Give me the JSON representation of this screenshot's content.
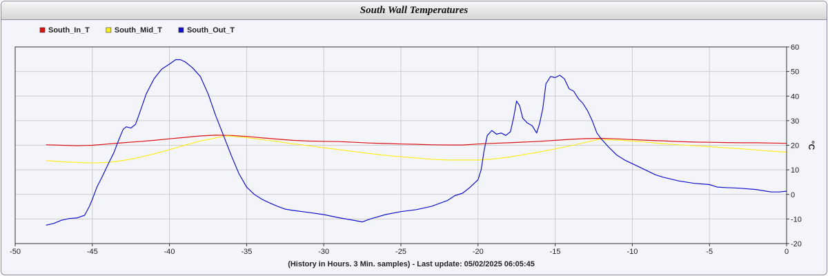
{
  "chart_data": {
    "type": "line",
    "title": "South Wall Temperatures",
    "footer": "(History in Hours. 3 Min. samples) - Last update: 05/02/2025 06:05:45",
    "ylabel": "°C",
    "xlim": [
      -50,
      0
    ],
    "ylim": [
      -20,
      60
    ],
    "xticks": [
      -50,
      -45,
      -40,
      -35,
      -30,
      -25,
      -20,
      -15,
      -10,
      -5,
      0
    ],
    "yticks": [
      -20,
      -10,
      0,
      10,
      20,
      30,
      40,
      50,
      60
    ],
    "grid": true,
    "legend_position": "top-left",
    "series": [
      {
        "name": "South_In_T",
        "color": "#dd1111",
        "points": [
          [
            -48,
            20.2
          ],
          [
            -47,
            20.0
          ],
          [
            -46,
            19.8
          ],
          [
            -45,
            20.0
          ],
          [
            -44,
            20.5
          ],
          [
            -43,
            21.0
          ],
          [
            -42,
            21.5
          ],
          [
            -41,
            22.0
          ],
          [
            -40,
            22.6
          ],
          [
            -39,
            23.2
          ],
          [
            -38,
            23.8
          ],
          [
            -37,
            24.1
          ],
          [
            -36,
            24.0
          ],
          [
            -35,
            23.6
          ],
          [
            -34,
            23.0
          ],
          [
            -33,
            22.5
          ],
          [
            -32,
            22.0
          ],
          [
            -31,
            21.7
          ],
          [
            -30,
            21.6
          ],
          [
            -29,
            21.5
          ],
          [
            -28,
            21.2
          ],
          [
            -27,
            20.9
          ],
          [
            -26,
            20.7
          ],
          [
            -25,
            20.5
          ],
          [
            -24,
            20.4
          ],
          [
            -23,
            20.2
          ],
          [
            -22,
            20.1
          ],
          [
            -21,
            20.1
          ],
          [
            -20,
            20.5
          ],
          [
            -19,
            20.8
          ],
          [
            -18,
            21.0
          ],
          [
            -17,
            21.3
          ],
          [
            -16,
            21.6
          ],
          [
            -15,
            22.0
          ],
          [
            -14,
            22.4
          ],
          [
            -13,
            22.7
          ],
          [
            -12,
            22.8
          ],
          [
            -11,
            22.6
          ],
          [
            -10,
            22.3
          ],
          [
            -9,
            22.0
          ],
          [
            -8,
            21.8
          ],
          [
            -7,
            21.5
          ],
          [
            -6,
            21.3
          ],
          [
            -5,
            21.2
          ],
          [
            -4,
            21.1
          ],
          [
            -3,
            21.0
          ],
          [
            -2,
            21.0
          ],
          [
            -1,
            20.9
          ],
          [
            0,
            20.8
          ]
        ]
      },
      {
        "name": "South_Mid_T",
        "color": "#ffee22",
        "points": [
          [
            -48,
            13.8
          ],
          [
            -47,
            13.3
          ],
          [
            -46,
            13.0
          ],
          [
            -45,
            12.8
          ],
          [
            -44,
            13.0
          ],
          [
            -43,
            13.8
          ],
          [
            -42,
            15.0
          ],
          [
            -41,
            16.5
          ],
          [
            -40,
            18.2
          ],
          [
            -39,
            20.0
          ],
          [
            -38,
            21.7
          ],
          [
            -37,
            23.0
          ],
          [
            -36.3,
            23.8
          ],
          [
            -36,
            23.7
          ],
          [
            -35,
            23.1
          ],
          [
            -34,
            22.3
          ],
          [
            -33,
            21.5
          ],
          [
            -32,
            20.6
          ],
          [
            -31,
            19.8
          ],
          [
            -30,
            19.0
          ],
          [
            -29,
            18.2
          ],
          [
            -28,
            17.4
          ],
          [
            -27,
            16.6
          ],
          [
            -26,
            15.9
          ],
          [
            -25,
            15.3
          ],
          [
            -24,
            14.8
          ],
          [
            -23,
            14.3
          ],
          [
            -22,
            14.0
          ],
          [
            -21,
            14.0
          ],
          [
            -20,
            14.0
          ],
          [
            -19,
            14.4
          ],
          [
            -18,
            15.2
          ],
          [
            -17,
            16.2
          ],
          [
            -16,
            17.3
          ],
          [
            -15,
            18.5
          ],
          [
            -14,
            19.8
          ],
          [
            -13,
            21.2
          ],
          [
            -12.2,
            22.4
          ],
          [
            -12,
            22.3
          ],
          [
            -11,
            22.1
          ],
          [
            -10,
            21.7
          ],
          [
            -9,
            21.2
          ],
          [
            -8,
            20.6
          ],
          [
            -7,
            20.2
          ],
          [
            -6,
            19.8
          ],
          [
            -5,
            19.4
          ],
          [
            -4,
            19.0
          ],
          [
            -3,
            18.6
          ],
          [
            -2,
            18.1
          ],
          [
            -1,
            17.6
          ],
          [
            0,
            17.2
          ]
        ]
      },
      {
        "name": "South_Out_T",
        "color": "#1111cc",
        "points": [
          [
            -48,
            -12.5
          ],
          [
            -47.5,
            -11.8
          ],
          [
            -47,
            -10.5
          ],
          [
            -46.5,
            -9.8
          ],
          [
            -46,
            -9.6
          ],
          [
            -45.5,
            -8.5
          ],
          [
            -45.2,
            -5.0
          ],
          [
            -45,
            -2.0
          ],
          [
            -44.7,
            3.0
          ],
          [
            -44.3,
            8.0
          ],
          [
            -44,
            12.0
          ],
          [
            -43.6,
            17.0
          ],
          [
            -43.3,
            22.0
          ],
          [
            -43,
            26.5
          ],
          [
            -42.8,
            27.5
          ],
          [
            -42.5,
            27.0
          ],
          [
            -42.2,
            28.5
          ],
          [
            -42,
            32.0
          ],
          [
            -41.5,
            41.0
          ],
          [
            -41,
            47.0
          ],
          [
            -40.5,
            51.0
          ],
          [
            -40,
            53.0
          ],
          [
            -39.6,
            54.8
          ],
          [
            -39.3,
            54.8
          ],
          [
            -39,
            54.0
          ],
          [
            -38.5,
            51.5
          ],
          [
            -38,
            48.0
          ],
          [
            -37.5,
            41.0
          ],
          [
            -37,
            32.0
          ],
          [
            -36.5,
            24.0
          ],
          [
            -36,
            16.0
          ],
          [
            -35.5,
            8.5
          ],
          [
            -35,
            3.0
          ],
          [
            -34.5,
            0.0
          ],
          [
            -34,
            -2.0
          ],
          [
            -33.5,
            -3.5
          ],
          [
            -33,
            -4.8
          ],
          [
            -32.5,
            -6.0
          ],
          [
            -32,
            -6.5
          ],
          [
            -31,
            -7.3
          ],
          [
            -30,
            -8.2
          ],
          [
            -29,
            -9.5
          ],
          [
            -28,
            -10.6
          ],
          [
            -27.5,
            -11.2
          ],
          [
            -27,
            -10.0
          ],
          [
            -26,
            -8.2
          ],
          [
            -25,
            -7.0
          ],
          [
            -24,
            -6.2
          ],
          [
            -23,
            -4.8
          ],
          [
            -22,
            -2.5
          ],
          [
            -21.5,
            -0.5
          ],
          [
            -21,
            0.5
          ],
          [
            -20.5,
            3.0
          ],
          [
            -20,
            6.0
          ],
          [
            -19.8,
            10.0
          ],
          [
            -19.6,
            18.0
          ],
          [
            -19.4,
            24.0
          ],
          [
            -19.1,
            26.0
          ],
          [
            -18.8,
            24.5
          ],
          [
            -18.5,
            25.0
          ],
          [
            -18.2,
            24.0
          ],
          [
            -17.9,
            25.5
          ],
          [
            -17.7,
            31.0
          ],
          [
            -17.5,
            38.0
          ],
          [
            -17.3,
            36.0
          ],
          [
            -17.1,
            31.0
          ],
          [
            -16.8,
            29.0
          ],
          [
            -16.5,
            28.0
          ],
          [
            -16.2,
            25.0
          ],
          [
            -16.0,
            29.0
          ],
          [
            -15.8,
            35.0
          ],
          [
            -15.6,
            45.0
          ],
          [
            -15.3,
            48.0
          ],
          [
            -15.0,
            47.5
          ],
          [
            -14.7,
            48.5
          ],
          [
            -14.4,
            47.0
          ],
          [
            -14.1,
            43.0
          ],
          [
            -13.8,
            42.0
          ],
          [
            -13.5,
            39.0
          ],
          [
            -13.2,
            37.0
          ],
          [
            -12.9,
            34.0
          ],
          [
            -12.6,
            30.0
          ],
          [
            -12.3,
            25.0
          ],
          [
            -12.0,
            22.5
          ],
          [
            -11.5,
            19.0
          ],
          [
            -11,
            16.0
          ],
          [
            -10.5,
            14.0
          ],
          [
            -10,
            12.5
          ],
          [
            -9.5,
            11.0
          ],
          [
            -9,
            9.5
          ],
          [
            -8.5,
            8.0
          ],
          [
            -8,
            7.0
          ],
          [
            -7,
            5.5
          ],
          [
            -6,
            4.5
          ],
          [
            -5,
            4.0
          ],
          [
            -4.5,
            3.0
          ],
          [
            -4,
            2.8
          ],
          [
            -3,
            2.5
          ],
          [
            -2,
            2.0
          ],
          [
            -1.5,
            1.5
          ],
          [
            -1,
            1.0
          ],
          [
            -0.5,
            1.0
          ],
          [
            0,
            1.3
          ]
        ]
      }
    ]
  }
}
